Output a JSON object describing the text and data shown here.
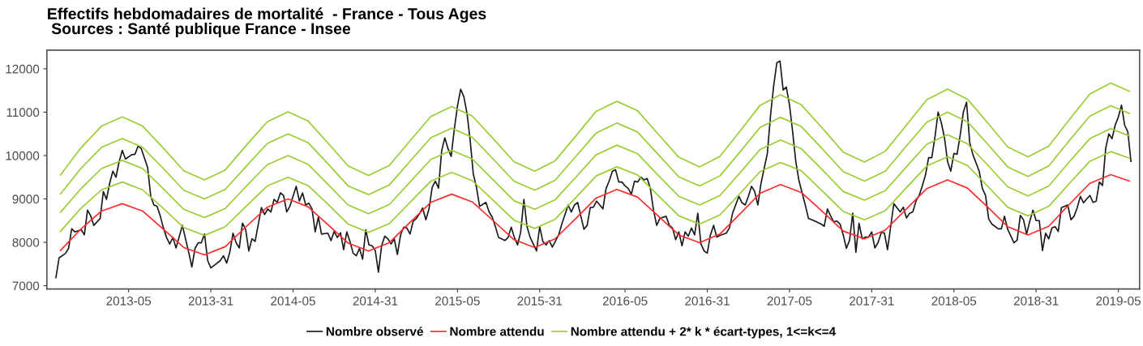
{
  "chart_data": {
    "type": "line",
    "title": "Effectifs hebdomadaires de mortalité  - France - Tous Ages",
    "subtitle": " Sources : Santé publique France - Insee",
    "x": [
      "2012-08-30",
      "2012-10-14",
      "2012-11-29",
      "2013-01-14",
      "2013-02-28",
      "2013-04-15",
      "2013-05-30",
      "2013-07-15",
      "2013-08-30",
      "2013-10-15",
      "2013-12-01",
      "2014-01-16",
      "2014-03-01",
      "2014-04-15",
      "2014-05-29",
      "2014-07-13",
      "2014-08-28",
      "2014-10-13",
      "2014-11-28",
      "2015-01-13",
      "2015-02-28",
      "2015-04-15",
      "2015-05-31",
      "2015-07-16",
      "2015-08-30",
      "2015-10-15",
      "2015-11-29",
      "2016-01-14",
      "2016-02-29",
      "2016-04-14",
      "2016-05-30",
      "2016-07-15",
      "2016-08-29",
      "2016-10-13",
      "2016-11-26",
      "2017-01-10",
      "2017-02-25",
      "2017-04-13",
      "2017-05-29",
      "2017-07-15",
      "2017-08-30",
      "2017-10-15",
      "2017-11-30",
      "2018-01-15",
      "2018-02-28",
      "2018-04-14",
      "2018-05-28",
      "2018-07-12",
      "2018-08-27",
      "2018-10-11",
      "2018-11-26",
      "2019-01-11",
      "2019-02-22"
    ],
    "xlim": [
      "2012-07-31",
      "2019-03-16"
    ],
    "xticks": [
      {
        "value": "2013-01-28",
        "label": "2013-05"
      },
      {
        "value": "2013-07-29",
        "label": "2013-31"
      },
      {
        "value": "2014-01-27",
        "label": "2014-05"
      },
      {
        "value": "2014-07-28",
        "label": "2014-31"
      },
      {
        "value": "2015-01-26",
        "label": "2015-05"
      },
      {
        "value": "2015-07-27",
        "label": "2015-31"
      },
      {
        "value": "2016-02-01",
        "label": "2016-05"
      },
      {
        "value": "2016-08-01",
        "label": "2016-31"
      },
      {
        "value": "2017-01-30",
        "label": "2017-05"
      },
      {
        "value": "2017-07-31",
        "label": "2017-31"
      },
      {
        "value": "2018-01-29",
        "label": "2018-05"
      },
      {
        "value": "2018-07-30",
        "label": "2018-31"
      },
      {
        "value": "2019-01-28",
        "label": "2019-05"
      }
    ],
    "ylim": [
      6925,
      12430
    ],
    "yticks": [
      7000,
      8000,
      9000,
      10000,
      11000,
      12000
    ],
    "grid": false,
    "legend": "bottom",
    "marker": "none",
    "line_style": "solid",
    "series": [
      {
        "name": "Nombre observé",
        "color": "#1a1a1a",
        "x": [
          "2012-08-20",
          "2012-08-27",
          "2012-09-10",
          "2012-09-17",
          "2012-09-24",
          "2012-10-01",
          "2012-10-15",
          "2012-10-22",
          "2012-10-29",
          "2012-11-05",
          "2012-11-12",
          "2012-11-26",
          "2012-12-03",
          "2012-12-10",
          "2012-12-17",
          "2012-12-24",
          "2012-12-31",
          "2013-01-07",
          "2013-01-14",
          "2013-01-21",
          "2013-02-04",
          "2013-02-11",
          "2013-02-18",
          "2013-02-25",
          "2013-03-11",
          "2013-03-18",
          "2013-03-25",
          "2013-04-01",
          "2013-04-08",
          "2013-04-15",
          "2013-04-22",
          "2013-04-29",
          "2013-05-06",
          "2013-05-13",
          "2013-05-27",
          "2013-06-10",
          "2013-06-17",
          "2013-06-24",
          "2013-07-01",
          "2013-07-08",
          "2013-07-15",
          "2013-07-22",
          "2013-07-29",
          "2013-08-12",
          "2013-08-19",
          "2013-08-26",
          "2013-09-02",
          "2013-09-09",
          "2013-09-16",
          "2013-09-23",
          "2013-09-30",
          "2013-10-07",
          "2013-10-14",
          "2013-10-21",
          "2013-10-28",
          "2013-11-04",
          "2013-11-18",
          "2013-11-25",
          "2013-12-02",
          "2013-12-09",
          "2013-12-16",
          "2013-12-23",
          "2013-12-30",
          "2014-01-06",
          "2014-01-13",
          "2014-01-20",
          "2014-02-03",
          "2014-02-10",
          "2014-02-17",
          "2014-02-24",
          "2014-03-03",
          "2014-03-10",
          "2014-03-17",
          "2014-03-24",
          "2014-03-31",
          "2014-04-14",
          "2014-04-21",
          "2014-04-28",
          "2014-05-05",
          "2014-05-12",
          "2014-05-19",
          "2014-05-26",
          "2014-06-02",
          "2014-06-09",
          "2014-06-16",
          "2014-06-23",
          "2014-06-30",
          "2014-07-07",
          "2014-07-14",
          "2014-07-21",
          "2014-07-28",
          "2014-08-04",
          "2014-08-11",
          "2014-08-18",
          "2014-08-25",
          "2014-09-01",
          "2014-09-08",
          "2014-09-15",
          "2014-09-22",
          "2014-09-29",
          "2014-10-06",
          "2014-10-13",
          "2014-10-20",
          "2014-10-27",
          "2014-11-03",
          "2014-11-10",
          "2014-11-17",
          "2014-11-24",
          "2014-12-01",
          "2014-12-08",
          "2014-12-15",
          "2014-12-22",
          "2014-12-29",
          "2015-01-05",
          "2015-01-12",
          "2015-01-19",
          "2015-01-26",
          "2015-02-02",
          "2015-02-09",
          "2015-02-16",
          "2015-02-23",
          "2015-03-02",
          "2015-03-09",
          "2015-03-16",
          "2015-03-30",
          "2015-04-06",
          "2015-04-13",
          "2015-04-20",
          "2015-04-27",
          "2015-05-11",
          "2015-05-18",
          "2015-05-25",
          "2015-06-01",
          "2015-06-08",
          "2015-06-15",
          "2015-06-22",
          "2015-06-29",
          "2015-07-06",
          "2015-07-20",
          "2015-07-27",
          "2015-08-03",
          "2015-08-10",
          "2015-08-17",
          "2015-08-24",
          "2015-09-07",
          "2015-09-14",
          "2015-09-28",
          "2015-10-05",
          "2015-10-12",
          "2015-10-19",
          "2015-10-26",
          "2015-11-02",
          "2015-11-09",
          "2015-11-16",
          "2015-11-23",
          "2015-11-30",
          "2015-12-07",
          "2015-12-14",
          "2015-12-21",
          "2015-12-28",
          "2016-01-04",
          "2016-01-11",
          "2016-01-18",
          "2016-01-25",
          "2016-02-01",
          "2016-02-08",
          "2016-02-15",
          "2016-02-22",
          "2016-02-29",
          "2016-03-07",
          "2016-03-14",
          "2016-03-21",
          "2016-03-28",
          "2016-04-04",
          "2016-04-11",
          "2016-04-18",
          "2016-05-02",
          "2016-05-09",
          "2016-05-16",
          "2016-05-23",
          "2016-05-30",
          "2016-06-06",
          "2016-06-13",
          "2016-06-20",
          "2016-06-27",
          "2016-07-04",
          "2016-07-11",
          "2016-07-18",
          "2016-07-25",
          "2016-08-01",
          "2016-08-08",
          "2016-08-15",
          "2016-08-22",
          "2016-08-29",
          "2016-09-12",
          "2016-09-19",
          "2016-09-26",
          "2016-10-10",
          "2016-10-17",
          "2016-10-24",
          "2016-10-31",
          "2016-11-07",
          "2016-11-14",
          "2016-11-21",
          "2016-11-28",
          "2016-12-12",
          "2016-12-19",
          "2016-12-26",
          "2017-01-02",
          "2017-01-09",
          "2017-01-16",
          "2017-01-23",
          "2017-01-30",
          "2017-02-06",
          "2017-02-13",
          "2017-02-20",
          "2017-02-27",
          "2017-03-06",
          "2017-03-13",
          "2017-03-27",
          "2017-04-10",
          "2017-04-17",
          "2017-04-24",
          "2017-05-01",
          "2017-05-08",
          "2017-05-15",
          "2017-05-22",
          "2017-05-29",
          "2017-06-05",
          "2017-06-12",
          "2017-06-19",
          "2017-06-26",
          "2017-07-03",
          "2017-07-10",
          "2017-07-17",
          "2017-07-24",
          "2017-07-31",
          "2017-08-07",
          "2017-08-14",
          "2017-08-21",
          "2017-08-28",
          "2017-09-04",
          "2017-09-11",
          "2017-09-18",
          "2017-10-02",
          "2017-10-09",
          "2017-10-16",
          "2017-10-23",
          "2017-10-30",
          "2017-11-06",
          "2017-11-13",
          "2017-11-20",
          "2017-11-27",
          "2017-12-04",
          "2017-12-11",
          "2017-12-18",
          "2017-12-25",
          "2018-01-01",
          "2018-01-08",
          "2018-01-15",
          "2018-01-22",
          "2018-01-29",
          "2018-02-05",
          "2018-02-12",
          "2018-02-19",
          "2018-02-26",
          "2018-03-05",
          "2018-03-12",
          "2018-03-26",
          "2018-04-02",
          "2018-04-09",
          "2018-04-16",
          "2018-04-23",
          "2018-05-07",
          "2018-05-14",
          "2018-05-21",
          "2018-05-28",
          "2018-06-11",
          "2018-06-18",
          "2018-06-25",
          "2018-07-02",
          "2018-07-09",
          "2018-07-16",
          "2018-07-23",
          "2018-07-30",
          "2018-08-06",
          "2018-08-13",
          "2018-08-20",
          "2018-08-27",
          "2018-09-03",
          "2018-09-10",
          "2018-09-17",
          "2018-09-24",
          "2018-10-08",
          "2018-10-15",
          "2018-10-22",
          "2018-10-29",
          "2018-11-05",
          "2018-11-12",
          "2018-11-19",
          "2018-11-26",
          "2018-12-03",
          "2018-12-10",
          "2018-12-17",
          "2018-12-24",
          "2018-12-31",
          "2019-01-07",
          "2019-01-14",
          "2019-01-21",
          "2019-01-28",
          "2019-02-04",
          "2019-02-11",
          "2019-02-18",
          "2019-02-25"
        ],
        "values": [
          7180,
          7640,
          7740,
          7860,
          8310,
          8240,
          8290,
          8170,
          8740,
          8610,
          8390,
          8550,
          9170,
          8990,
          9360,
          9640,
          9500,
          9860,
          10120,
          9920,
          10020,
          10030,
          10220,
          10160,
          9730,
          9060,
          8860,
          8830,
          8610,
          8330,
          8110,
          7960,
          8110,
          7870,
          8390,
          7770,
          7430,
          7860,
          7990,
          7990,
          8190,
          7580,
          7410,
          7520,
          7580,
          7690,
          7520,
          7770,
          8210,
          7990,
          7870,
          8440,
          8300,
          7800,
          8080,
          8020,
          8800,
          8640,
          8770,
          8700,
          8990,
          8920,
          9140,
          9080,
          8700,
          8830,
          9290,
          8950,
          9140,
          8860,
          8900,
          8770,
          8240,
          8580,
          8190,
          8210,
          8040,
          8250,
          8110,
          8220,
          7830,
          8240,
          8020,
          7750,
          7690,
          7860,
          7610,
          8290,
          7940,
          7920,
          7810,
          7310,
          7920,
          8140,
          8080,
          7960,
          8080,
          7720,
          8170,
          8350,
          8330,
          8190,
          8490,
          8550,
          8660,
          8790,
          8520,
          8770,
          9270,
          9410,
          9250,
          10110,
          10410,
          10160,
          9980,
          10610,
          11140,
          11530,
          11360,
          10980,
          10360,
          9580,
          9270,
          8830,
          8920,
          8700,
          8580,
          8360,
          8110,
          8040,
          8110,
          8350,
          8110,
          7940,
          8240,
          8990,
          8360,
          8110,
          7800,
          8360,
          8020,
          7940,
          8040,
          7890,
          8170,
          8420,
          8860,
          8700,
          8860,
          8920,
          8610,
          8300,
          8390,
          8800,
          8810,
          8950,
          8860,
          8770,
          9240,
          9420,
          9640,
          9670,
          9390,
          9390,
          9300,
          9240,
          9110,
          9410,
          9390,
          9500,
          9440,
          9470,
          9240,
          8740,
          8390,
          8550,
          8600,
          8390,
          8330,
          8060,
          8240,
          7920,
          8240,
          8140,
          8330,
          8170,
          8670,
          7960,
          7800,
          7750,
          8170,
          8390,
          8120,
          8160,
          8210,
          8330,
          8670,
          9060,
          8910,
          8860,
          9060,
          9290,
          9170,
          8860,
          9360,
          10050,
          10920,
          11610,
          12140,
          12180,
          11510,
          11580,
          11170,
          10550,
          9860,
          9420,
          9140,
          8860,
          8550,
          8490,
          8420,
          8370,
          8770,
          8610,
          8470,
          8490,
          8420,
          8170,
          7860,
          8050,
          8670,
          7770,
          8440,
          8080,
          8120,
          8120,
          8240,
          7870,
          7990,
          8220,
          8220,
          7830,
          8360,
          8890,
          8700,
          8810,
          8560,
          8670,
          8700,
          8950,
          9080,
          9300,
          9550,
          9950,
          9950,
          10420,
          11000,
          10760,
          10420,
          9860,
          9640,
          10050,
          10030,
          10480,
          11010,
          11230,
          10300,
          10020,
          9640,
          9240,
          9080,
          8540,
          8420,
          8310,
          8310,
          8600,
          8300,
          7990,
          8050,
          8620,
          8520,
          8190,
          8490,
          8740,
          8500,
          8500,
          7810,
          8210,
          8080,
          8330,
          8360,
          8250,
          8800,
          8860,
          8520,
          8600,
          8800,
          9060,
          8910,
          9000,
          9080,
          8920,
          8950,
          9390,
          9310,
          10170,
          10500,
          10390,
          10700,
          10890,
          11160,
          10700,
          10550,
          9860
        ]
      },
      {
        "name": "Nombre attendu",
        "color": "#ff2a2a",
        "values": [
          7810,
          8300,
          8720,
          8890,
          8720,
          8300,
          7880,
          7710,
          7900,
          8360,
          8810,
          9000,
          8820,
          8400,
          7980,
          7800,
          7990,
          8460,
          8920,
          9110,
          8930,
          8500,
          8060,
          7880,
          8080,
          8550,
          9020,
          9220,
          9040,
          8610,
          8170,
          7990,
          8190,
          8660,
          9130,
          9330,
          9150,
          8710,
          8260,
          8080,
          8280,
          8760,
          9240,
          9440,
          9250,
          8810,
          8360,
          8170,
          8370,
          8870,
          9360,
          9560,
          9410
        ]
      },
      {
        "name": "Nombre attendu + 2* k * écart-types, 1<=k<=4",
        "color": "#9acd32",
        "values": [
          8250,
          8780,
          9210,
          9390,
          9210,
          8780,
          8340,
          8160,
          8360,
          8830,
          9300,
          9500,
          9310,
          8870,
          8420,
          8230,
          8430,
          8920,
          9410,
          9610,
          9420,
          8970,
          8510,
          8320,
          8530,
          9030,
          9530,
          9740,
          9550,
          9080,
          8610,
          8420,
          8630,
          9130,
          9630,
          9840,
          9650,
          9180,
          8710,
          8520,
          8730,
          9250,
          9760,
          9970,
          9770,
          9290,
          8810,
          8610,
          8830,
          9350,
          9870,
          10090,
          9940
        ]
      },
      {
        "color": "#9acd32",
        "values": [
          8690,
          9230,
          9700,
          9890,
          9700,
          9230,
          8760,
          8570,
          8780,
          9290,
          9790,
          10000,
          9800,
          9330,
          8860,
          8660,
          8870,
          9390,
          9910,
          10120,
          9920,
          9440,
          8960,
          8760,
          8980,
          9500,
          10020,
          10240,
          10040,
          9550,
          9060,
          8860,
          9080,
          9610,
          10140,
          10360,
          10160,
          9670,
          9170,
          8970,
          9190,
          9730,
          10260,
          10480,
          10270,
          9780,
          9280,
          9070,
          9300,
          9850,
          10390,
          10620,
          10450
        ]
      },
      {
        "color": "#9acd32",
        "values": [
          9110,
          9700,
          10190,
          10390,
          10190,
          9700,
          9200,
          9000,
          9220,
          9750,
          10280,
          10500,
          10300,
          9800,
          9300,
          9100,
          9320,
          9870,
          10410,
          10630,
          10420,
          9920,
          9410,
          9200,
          9430,
          9980,
          10520,
          10750,
          10540,
          10030,
          9510,
          9300,
          9530,
          10090,
          10650,
          10880,
          10670,
          10150,
          9630,
          9410,
          9640,
          10210,
          10770,
          11000,
          10780,
          10260,
          9740,
          9520,
          9760,
          10340,
          10910,
          11150,
          10970
        ]
      },
      {
        "color": "#9acd32",
        "values": [
          9550,
          10170,
          10680,
          10890,
          10680,
          10170,
          9650,
          9440,
          9670,
          10230,
          10780,
          11010,
          10800,
          10280,
          9760,
          9540,
          9770,
          10340,
          10900,
          11130,
          10910,
          10390,
          9860,
          9640,
          9880,
          10450,
          11020,
          11250,
          11030,
          10500,
          9960,
          9740,
          9980,
          10570,
          11160,
          11400,
          11170,
          10630,
          10080,
          9850,
          10100,
          10690,
          11290,
          11530,
          11300,
          10750,
          10200,
          9970,
          10220,
          10820,
          11420,
          11670,
          11480
        ]
      }
    ]
  }
}
